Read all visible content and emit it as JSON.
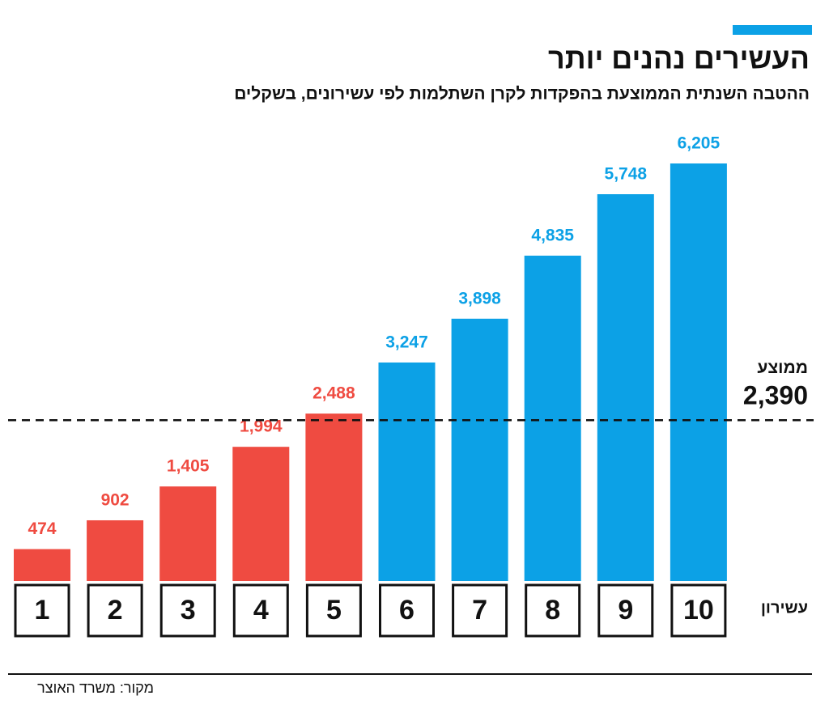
{
  "chart_data": {
    "type": "bar",
    "title": "העשירים נהנים יותר",
    "subtitle": "ההטבה השנתית הממוצעת בהפקדות לקרן השתלמות לפי עשירונים, בשקלים",
    "x_label": "עשירון",
    "categories": [
      "1",
      "2",
      "3",
      "4",
      "5",
      "6",
      "7",
      "8",
      "9",
      "10"
    ],
    "values": [
      474,
      902,
      1405,
      1994,
      2488,
      3247,
      3898,
      4835,
      5748,
      6205
    ],
    "value_labels": [
      "474",
      "902",
      "1,405",
      "1,994",
      "2,488",
      "3,247",
      "3,898",
      "4,835",
      "5,748",
      "6,205"
    ],
    "colors": [
      "#ef4b41",
      "#ef4b41",
      "#ef4b41",
      "#ef4b41",
      "#ef4b41",
      "#0ca1e6",
      "#0ca1e6",
      "#0ca1e6",
      "#0ca1e6",
      "#0ca1e6"
    ],
    "average": {
      "label": "ממוצע",
      "value": 2390,
      "value_label": "2,390"
    },
    "source": "מקור: משרד האוצר"
  }
}
